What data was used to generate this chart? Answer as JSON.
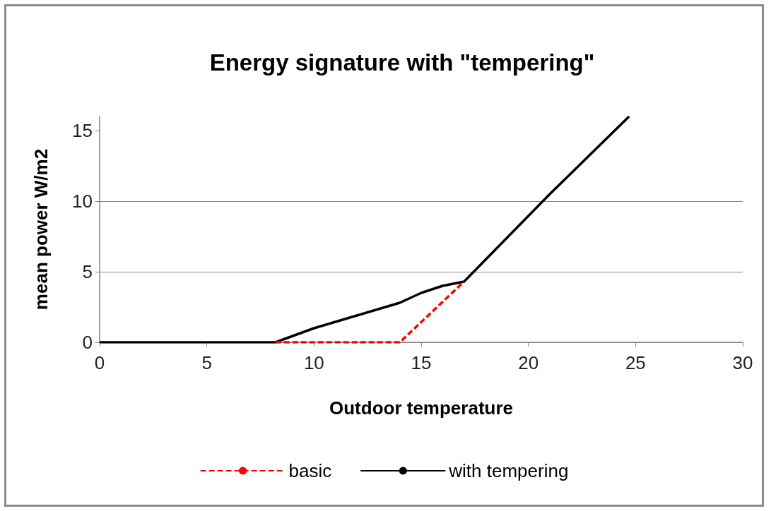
{
  "chart_data": {
    "type": "line",
    "title": "Energy signature with \"tempering\"",
    "xlabel": "Outdoor temperature",
    "ylabel": "mean power W/m2",
    "series": [
      {
        "name": "basic",
        "color": "#ff0000",
        "line_style": "dashed",
        "x": [
          8.2,
          14,
          17
        ],
        "values": [
          0,
          0,
          4.3
        ]
      },
      {
        "name": "with tempering",
        "color": "#000000",
        "line_style": "solid",
        "x": [
          0,
          8.2,
          10,
          12,
          14,
          15,
          16,
          17,
          21,
          24.7
        ],
        "values": [
          0,
          0,
          1.0,
          1.9,
          2.8,
          3.5,
          4.0,
          4.3,
          10.5,
          16
        ]
      }
    ],
    "xlim": [
      0,
      30
    ],
    "xticks": [
      0,
      5,
      10,
      15,
      20,
      25,
      30
    ],
    "ylim": [
      0,
      16
    ],
    "yticks": [
      0,
      5,
      10,
      15
    ],
    "grid": "y",
    "legend": "bottom",
    "marker": "none"
  }
}
